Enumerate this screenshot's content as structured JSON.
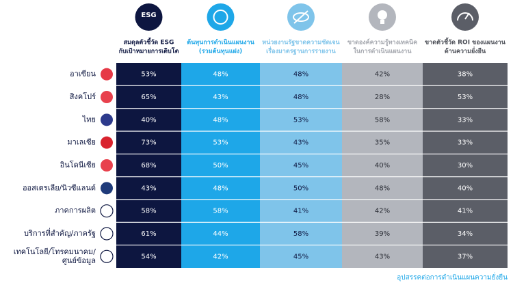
{
  "esg_icon": "ESG",
  "columns": [
    {
      "lines": [
        "สมดุลตัวชี้วัด ESG",
        "กับเป้าหมายการเติบโต"
      ]
    },
    {
      "lines": [
        "ต้นทุนการดำเนินแผนงาน",
        "(รวมต้นทุนแฝง)"
      ]
    },
    {
      "lines": [
        "หน่วยงานรัฐขาดความชัดเจน",
        "เรื่องมาตรฐานการรายงาน"
      ]
    },
    {
      "lines": [
        "ขาดองค์ความรู้ทางเทคนิค",
        "ในการดำเนินแผนงาน"
      ]
    },
    {
      "lines": [
        "ขาดตัวชี้วัด ROI ของแผนงาน",
        "ด้านความยั่งยืน"
      ]
    }
  ],
  "rows": [
    {
      "label": [
        "อาเซียน"
      ],
      "values": [
        "53%",
        "48%",
        "48%",
        "42%",
        "38%"
      ]
    },
    {
      "label": [
        "สิงคโปร์"
      ],
      "values": [
        "65%",
        "43%",
        "48%",
        "28%",
        "53%"
      ]
    },
    {
      "label": [
        "ไทย"
      ],
      "values": [
        "40%",
        "48%",
        "53%",
        "58%",
        "33%"
      ]
    },
    {
      "label": [
        "มาเลเซีย"
      ],
      "values": [
        "73%",
        "53%",
        "43%",
        "35%",
        "33%"
      ]
    },
    {
      "label": [
        "อินโดนีเซีย"
      ],
      "values": [
        "68%",
        "50%",
        "45%",
        "40%",
        "30%"
      ]
    },
    {
      "label": [
        "ออสเตรเลีย/นิวซีแลนด์"
      ],
      "values": [
        "43%",
        "48%",
        "50%",
        "48%",
        "40%"
      ]
    },
    {
      "label": [
        "ภาคการผลิต"
      ],
      "values": [
        "58%",
        "58%",
        "41%",
        "42%",
        "41%"
      ]
    },
    {
      "label": [
        "บริการที่สำคัญ/ภาครัฐ"
      ],
      "values": [
        "61%",
        "44%",
        "58%",
        "39%",
        "34%"
      ]
    },
    {
      "label": [
        "เทคโนโลยี/โทรคมนาคม/",
        "ศูนย์ข้อมูล"
      ],
      "values": [
        "54%",
        "42%",
        "45%",
        "43%",
        "37%"
      ]
    }
  ],
  "footer": "อุปสรรคต่อการดำเนินแผนความยั่งยืน"
}
